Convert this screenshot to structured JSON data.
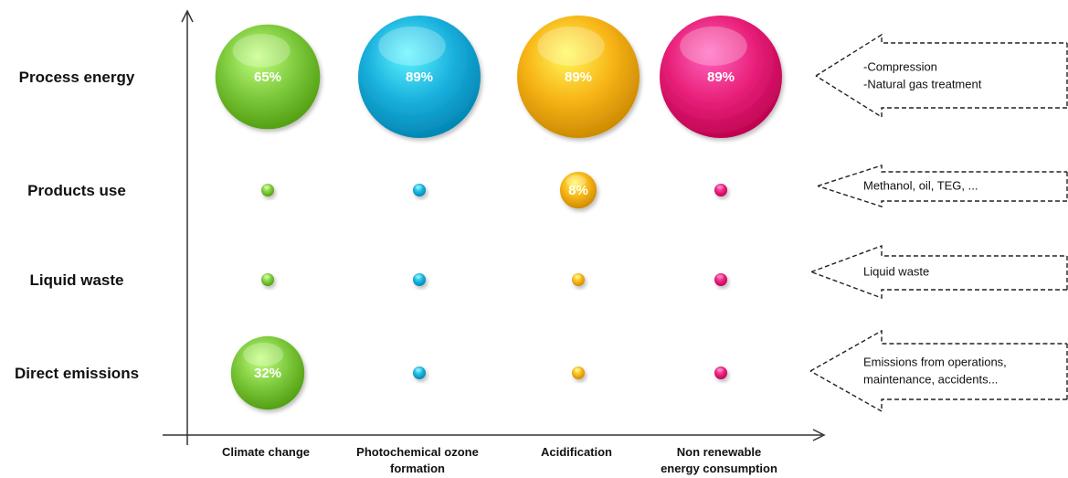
{
  "colors": {
    "green": "#7dc93c",
    "blue": "#1ab0dd",
    "orange": "#f7b416",
    "pink": "#e8207a",
    "axis": "#333333"
  },
  "chart_data": {
    "type": "bubble",
    "row_labels": [
      "Process energy",
      "Products use",
      "Liquid waste",
      "Direct emissions"
    ],
    "column_labels": [
      [
        "Climate change"
      ],
      [
        "Photochemical ozone",
        "formation"
      ],
      [
        "Acidification"
      ],
      [
        "Non renewable",
        "energy consumption"
      ]
    ],
    "column_colors": [
      "green",
      "blue",
      "orange",
      "pink"
    ],
    "series": [
      {
        "column": "Climate change",
        "values": [
          65,
          null,
          null,
          32
        ],
        "labels": [
          "65%",
          "",
          "",
          "32%"
        ]
      },
      {
        "column": "Photochemical ozone formation",
        "values": [
          89,
          null,
          null,
          null
        ],
        "labels": [
          "89%",
          "",
          "",
          ""
        ]
      },
      {
        "column": "Acidification",
        "values": [
          89,
          8,
          null,
          null
        ],
        "labels": [
          "89%",
          "8%",
          "",
          ""
        ]
      },
      {
        "column": "Non renewable energy consumption",
        "values": [
          89,
          null,
          null,
          null
        ],
        "labels": [
          "89%",
          "",
          "",
          ""
        ]
      }
    ],
    "callouts": [
      [
        "-Compression",
        "-Natural gas treatment"
      ],
      [
        "Methanol, oil, TEG, ..."
      ],
      [
        "Liquid waste"
      ],
      [
        "Emissions from operations,",
        "maintenance, accidents..."
      ]
    ]
  }
}
